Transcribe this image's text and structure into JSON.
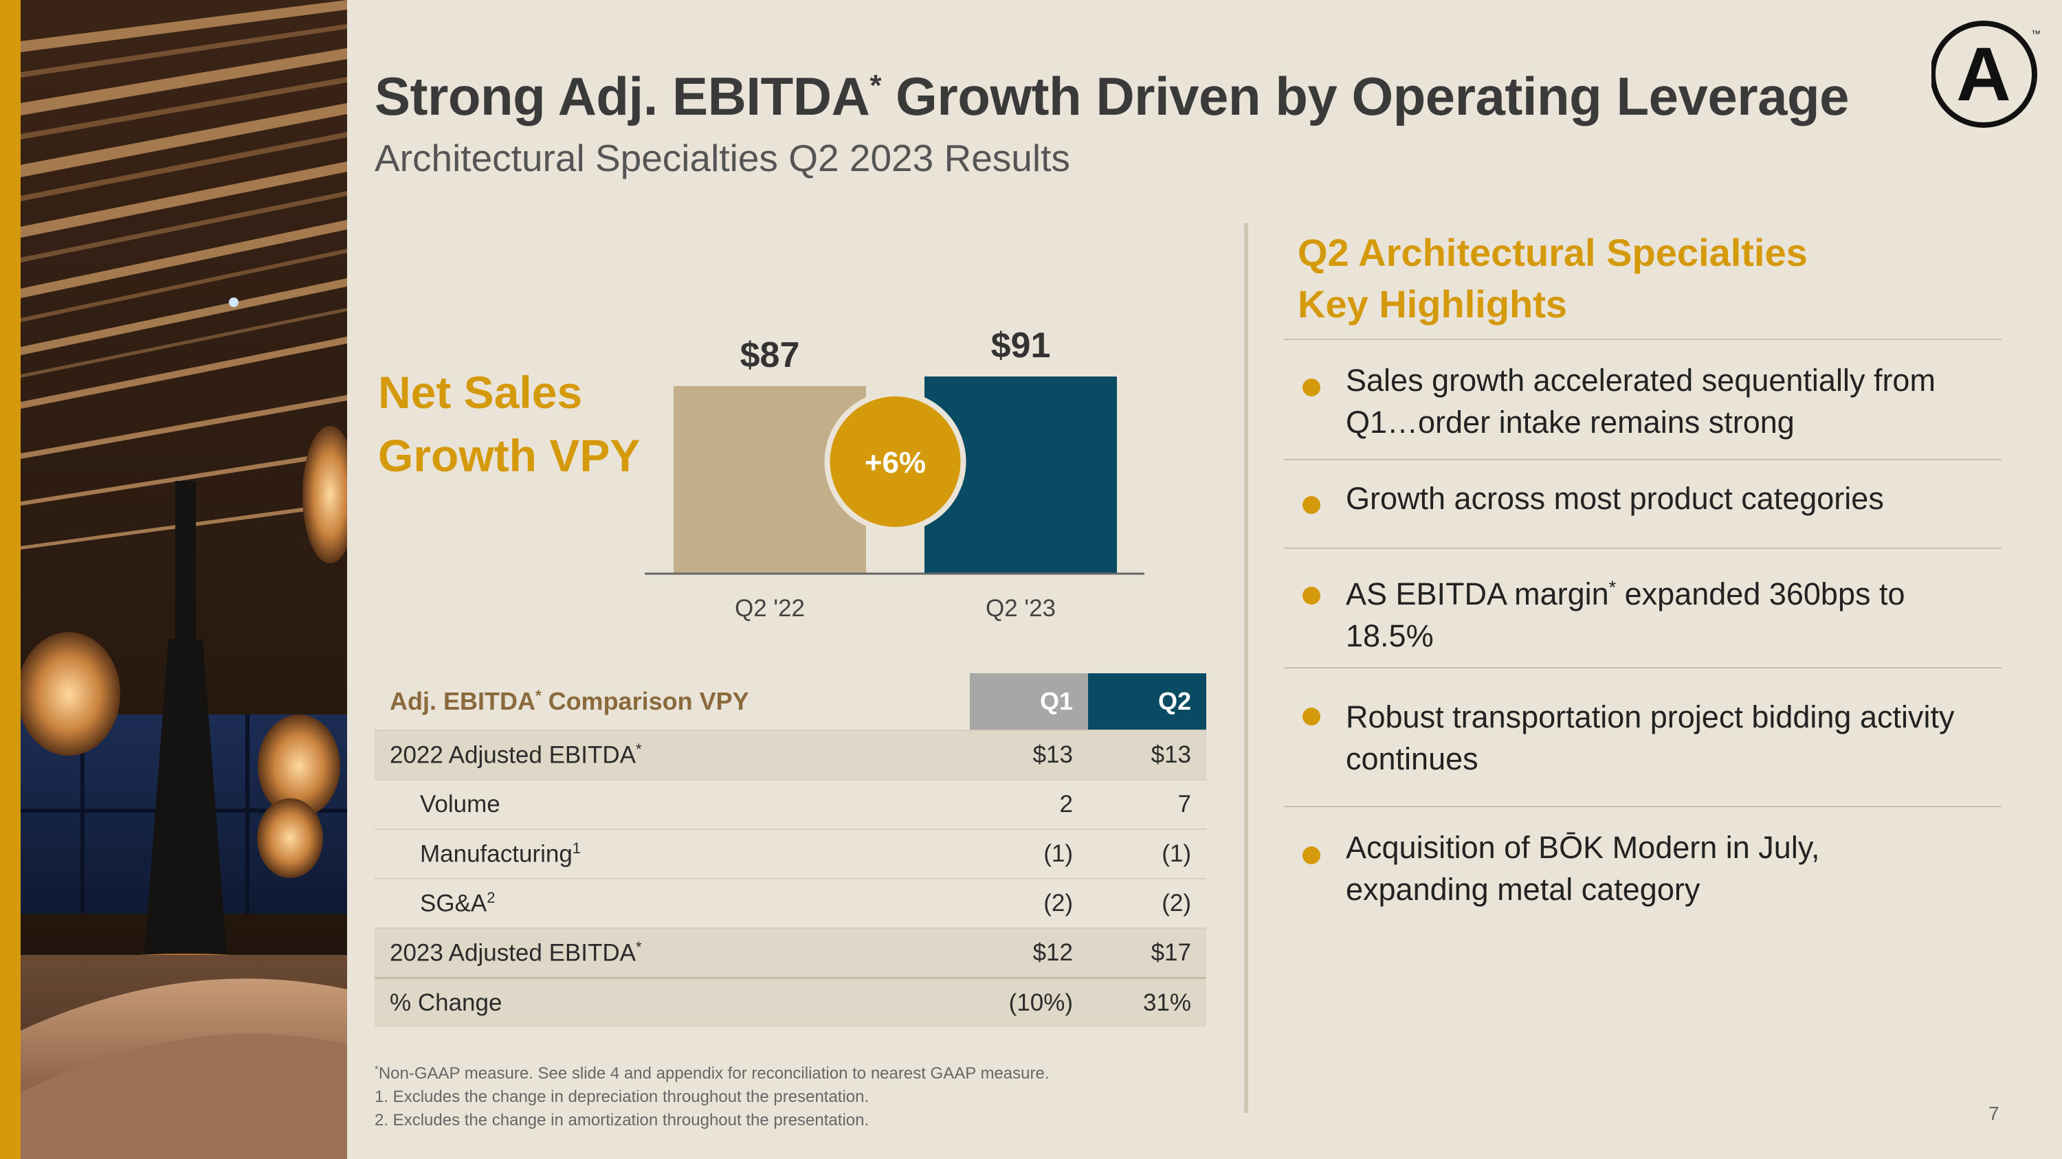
{
  "header": {
    "title": "Strong Adj. EBITDA",
    "title_mark": "*",
    "title_rest": " Growth Driven by Operating Leverage",
    "subtitle": "Architectural Specialties Q2 2023 Results"
  },
  "colors": {
    "gold": "#D59A0C",
    "tan_bar": "#C3AE8A",
    "teal_bar": "#084B63",
    "q1_header": "#A7A7A5",
    "background": "#EAE4D8"
  },
  "chart_section": {
    "heading_line1": "Net Sales",
    "heading_line2": "Growth VPY"
  },
  "chart_data": {
    "type": "bar",
    "categories": [
      "Q2 '22",
      "Q2 '23"
    ],
    "values": [
      87,
      91
    ],
    "value_labels": [
      "$87",
      "$91"
    ],
    "bar_colors": [
      "#C3AE8A",
      "#084B63"
    ],
    "ylim": [
      0,
      100
    ],
    "annotation": "+6%",
    "grid": false
  },
  "table": {
    "header_label": "Adj. EBITDA",
    "header_mark": "*",
    "header_rest": " Comparison VPY",
    "col_q1": "Q1",
    "col_q2": "Q2",
    "rows": [
      {
        "label": "2022 Adjusted EBITDA",
        "mark": "*",
        "q1": "$13",
        "q2": "$13"
      },
      {
        "label": "Volume",
        "mark": "",
        "q1": "2",
        "q2": "7"
      },
      {
        "label": "Manufacturing",
        "mark": "1",
        "q1": "(1)",
        "q2": "(1)"
      },
      {
        "label": "SG&A",
        "mark": "2",
        "q1": "(2)",
        "q2": "(2)"
      },
      {
        "label": "2023 Adjusted EBITDA",
        "mark": "*",
        "q1": "$12",
        "q2": "$17"
      },
      {
        "label": "% Change",
        "mark": "",
        "q1": "(10%)",
        "q2": "31%"
      }
    ]
  },
  "footnotes": {
    "star_mark": "*",
    "note0": "Non-GAAP measure. See slide 4 and appendix for reconciliation to nearest GAAP measure.",
    "note1": "1. Excludes the change in depreciation throughout the presentation.",
    "note2": "2. Excludes the change in amortization throughout the presentation."
  },
  "highlights": {
    "title_line1": "Q2 Architectural Specialties",
    "title_line2": "Key Highlights",
    "items": [
      {
        "text": "Sales growth accelerated sequentially from Q1…order intake remains strong"
      },
      {
        "text": "Growth across most product categories"
      },
      {
        "text_a": "AS EBITDA margin",
        "mark": "*",
        "text_b": " expanded 360bps to 18.5%"
      },
      {
        "text": "Robust transportation project bidding activity continues"
      },
      {
        "text": "Acquisition of BŌK Modern in July, expanding metal category"
      }
    ]
  },
  "page_number": "7",
  "logo": {
    "letter": "A",
    "mark": "™",
    "icon": "armstrong-a-logo"
  }
}
